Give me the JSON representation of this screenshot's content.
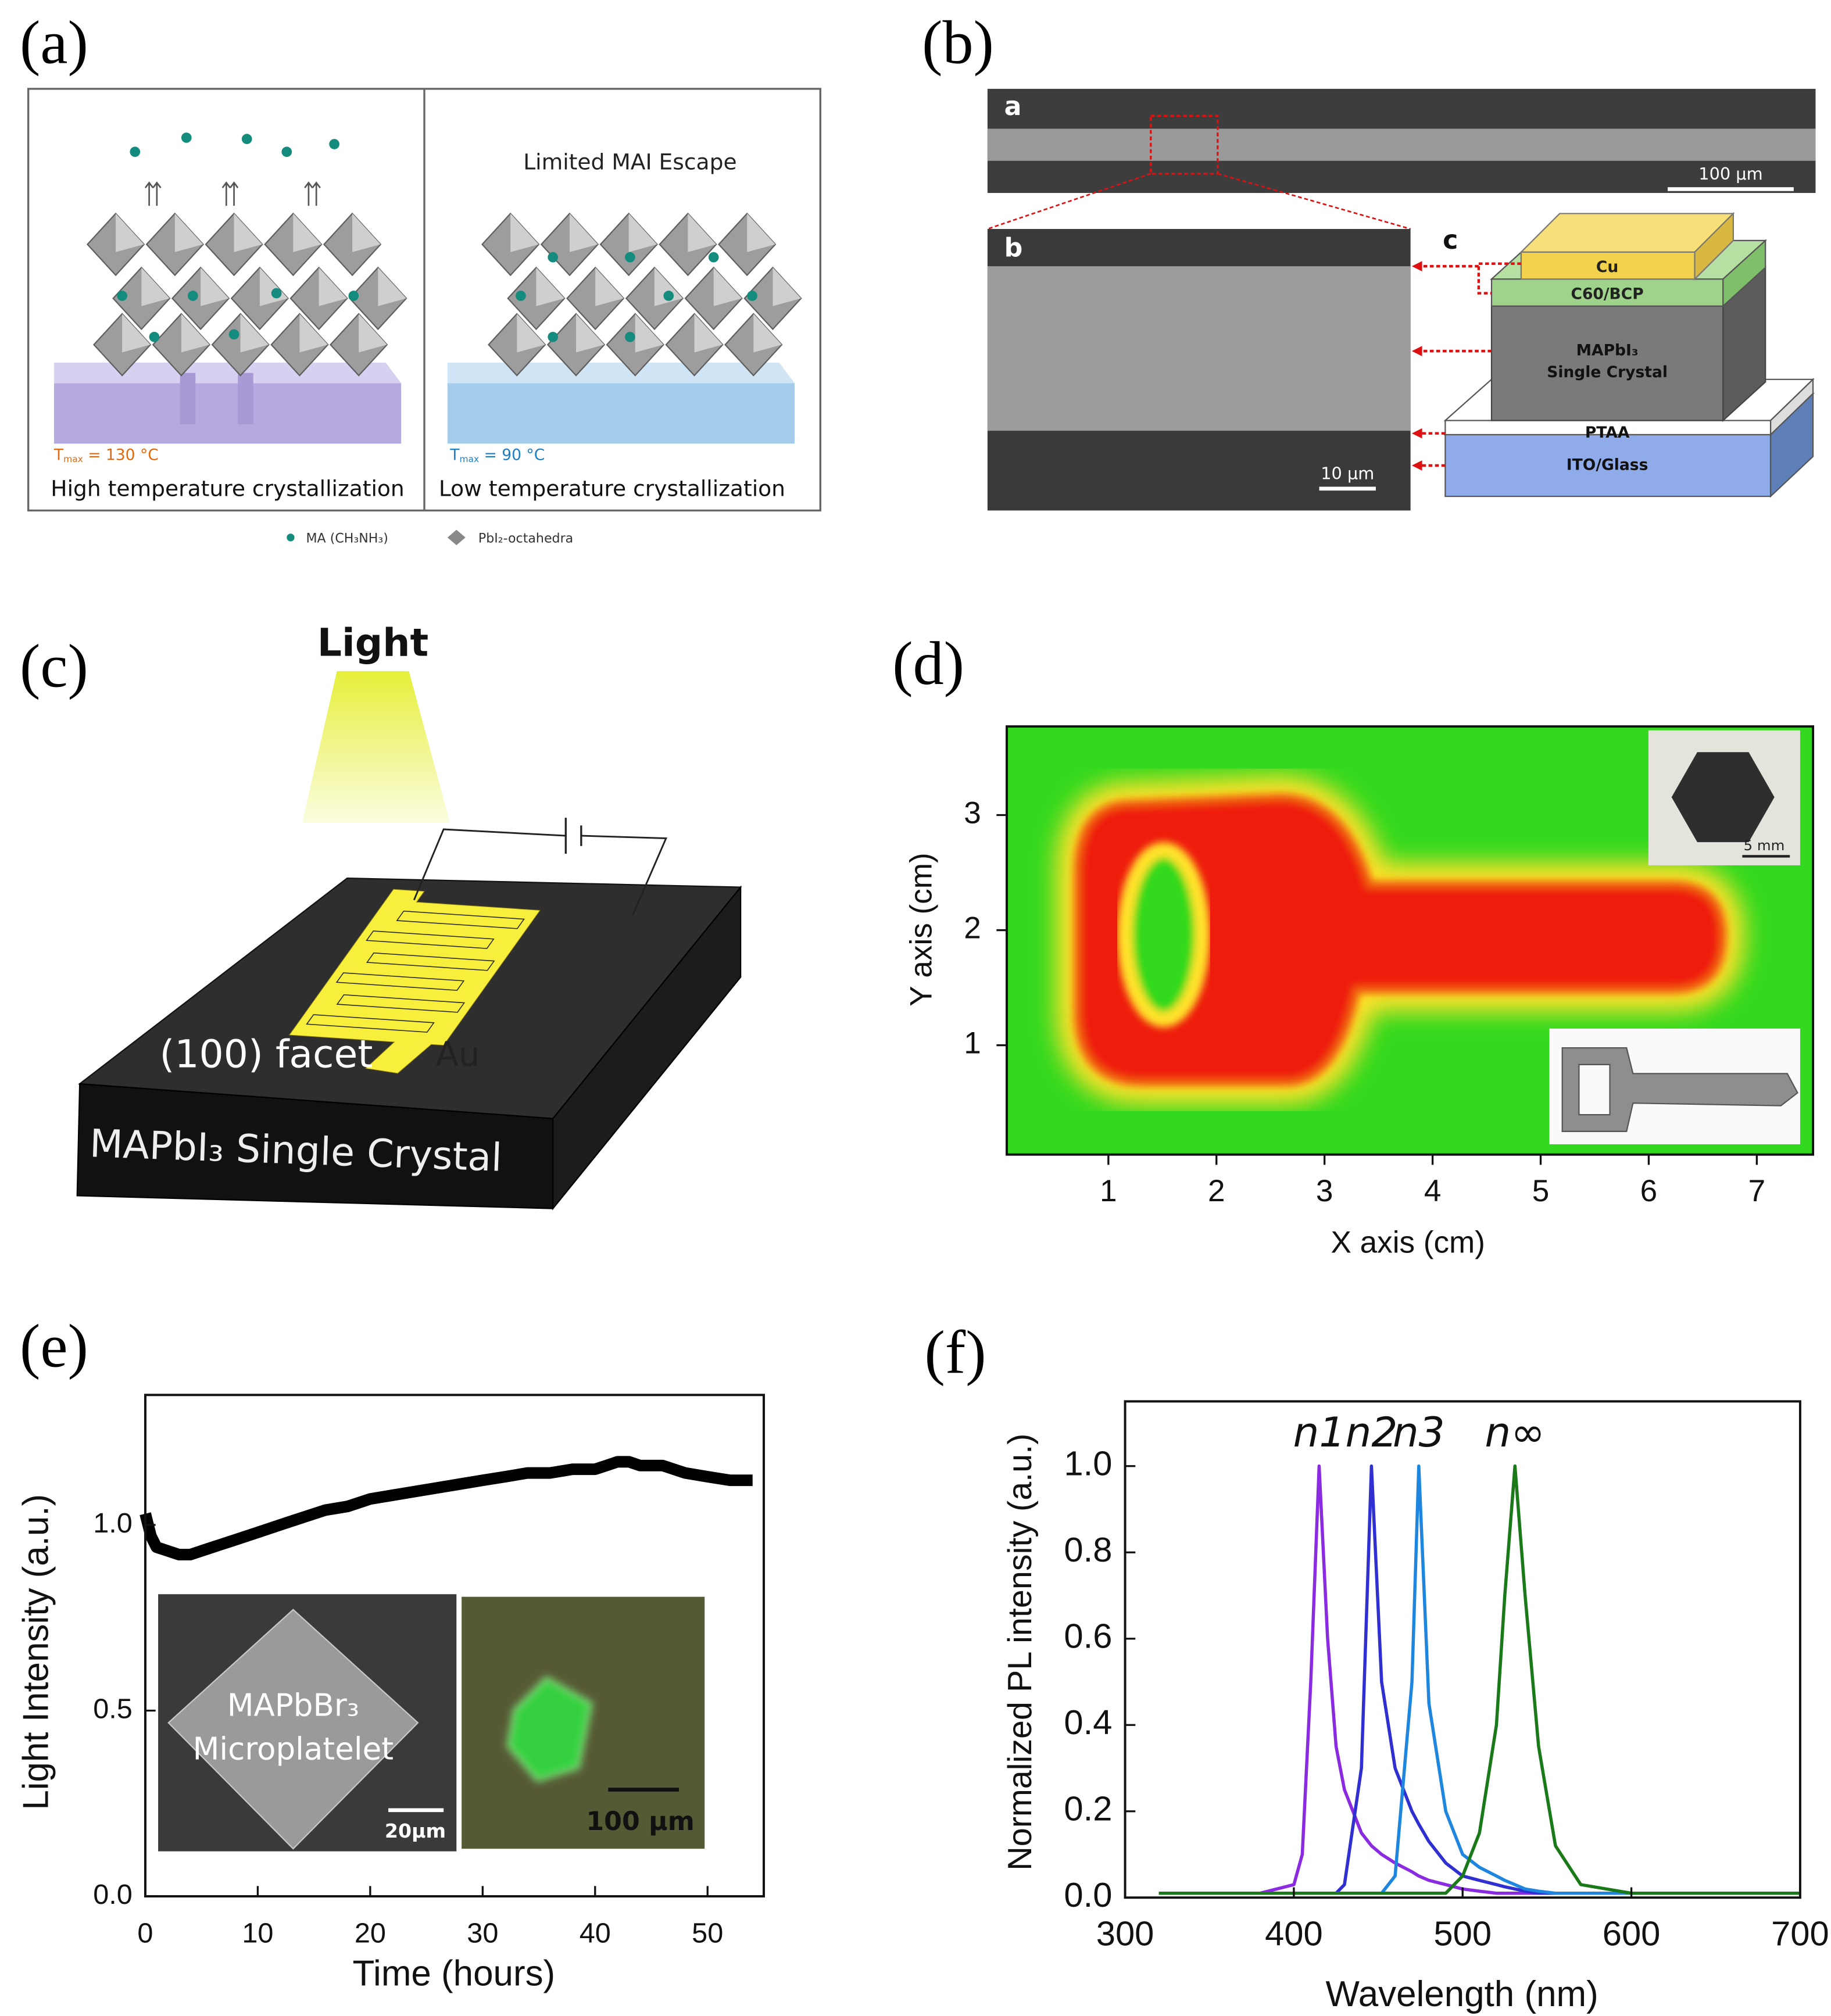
{
  "figure_labels": [
    "(a)",
    "(b)",
    "(c)",
    "(d)",
    "(e)",
    "(f)"
  ],
  "panel_a": {
    "heading_right": "Limited MAI Escape",
    "left": {
      "t": "T",
      "t_sub": "max",
      "t_rest": " = 130 °C",
      "caption": "High temperature crystallization"
    },
    "right": {
      "t": "T",
      "t_sub": "max",
      "t_rest": " = 90 °C",
      "caption": "Low temperature crystallization"
    },
    "legend": [
      "MA (CH₃NH₃)",
      "PbI₂-octahedra"
    ]
  },
  "panel_b": {
    "sub_labels": [
      "a",
      "b",
      "c"
    ],
    "scale_bars": [
      "100 μm",
      "10 μm"
    ],
    "layers": [
      "Cu",
      "C60/BCP",
      "PTAA",
      "ITO/Glass"
    ],
    "crystal_label": [
      "MAPbI₃",
      "Single Crystal"
    ]
  },
  "panel_c": {
    "light": "Light",
    "facet": "(100) facet",
    "electrode": "Au",
    "crystal": "MAPbI₃ Single Crystal"
  },
  "chart_data": [
    {
      "type": "map",
      "xlabel": "X axis (cm)",
      "ylabel": "Y axis (cm)",
      "xlim": [
        0.06,
        7.52
      ],
      "ylim": [
        0.05,
        3.77
      ],
      "xticks": [
        1,
        2,
        3,
        4,
        5,
        6,
        7
      ],
      "yticks": [
        1,
        2,
        3
      ],
      "colors": {
        "background": "#33d91f",
        "edge": "#ffe22a",
        "core": "#ee1c0c"
      },
      "inset_scale": "5 mm"
    },
    {
      "type": "line",
      "xlabel": "Time (hours)",
      "ylabel": "Light Intensity (a.u.)",
      "xlim": [
        0,
        55
      ],
      "ylim": [
        0,
        1.35
      ],
      "xticks": [
        0,
        10,
        20,
        30,
        40,
        50
      ],
      "yticks": [
        {
          "value": 0,
          "label": "0.0"
        },
        0.5,
        {
          "value": 1,
          "label": "1.0"
        }
      ],
      "x": [
        0,
        0.5,
        1,
        2,
        3,
        4,
        6,
        8,
        10,
        12,
        14,
        16,
        18,
        20,
        22,
        24,
        26,
        28,
        30,
        32,
        34,
        36,
        38,
        40,
        41,
        42,
        43,
        44,
        46,
        48,
        50,
        52,
        54
      ],
      "series": [
        {
          "color": "#000000",
          "values": [
            1.03,
            0.97,
            0.94,
            0.93,
            0.92,
            0.92,
            0.94,
            0.96,
            0.98,
            1.0,
            1.02,
            1.04,
            1.05,
            1.07,
            1.08,
            1.09,
            1.1,
            1.11,
            1.12,
            1.13,
            1.14,
            1.14,
            1.15,
            1.15,
            1.16,
            1.17,
            1.17,
            1.16,
            1.16,
            1.14,
            1.13,
            1.12,
            1.12
          ]
        }
      ],
      "inset_labels": [
        "MAPbBr₃",
        "Microplatelet",
        "20μm",
        "100 μm"
      ]
    },
    {
      "type": "line",
      "xlabel": "Wavelength (nm)",
      "ylabel": "Normalized PL intensity (a.u.)",
      "xlim": [
        300,
        700
      ],
      "ylim": [
        0,
        1.15
      ],
      "xticks": [
        300,
        400,
        500,
        600,
        700
      ],
      "yticks": [
        {
          "value": 0,
          "label": "0.0"
        },
        0.2,
        0.4,
        0.6,
        0.8,
        {
          "value": 1,
          "label": "1.0"
        }
      ],
      "x": [
        320,
        380,
        400,
        405,
        410,
        415,
        420,
        425,
        430,
        440,
        446,
        452,
        460,
        470,
        474,
        480,
        490,
        500,
        510,
        520,
        525,
        531,
        537,
        545,
        555,
        570,
        600,
        650,
        700
      ],
      "series": [
        {
          "name": "n1",
          "color": "#8a2be2",
          "values": [
            0.01,
            0.01,
            0.03,
            0.1,
            0.5,
            1.0,
            0.6,
            0.35,
            0.25,
            0.15,
            0.12,
            0.1,
            0.08,
            0.06,
            0.05,
            0.04,
            0.03,
            0.02,
            0.015,
            0.01,
            0.01,
            0.01,
            0.01,
            0.01,
            0.01,
            0.01,
            0.01,
            0.01,
            0.01
          ]
        },
        {
          "name": "n2",
          "color": "#2f2fd2",
          "values": [
            0.01,
            0.01,
            0.01,
            0.01,
            0.01,
            0.01,
            0.01,
            0.01,
            0.03,
            0.3,
            1.0,
            0.5,
            0.3,
            0.2,
            0.17,
            0.13,
            0.08,
            0.05,
            0.04,
            0.03,
            0.025,
            0.02,
            0.015,
            0.01,
            0.01,
            0.01,
            0.01,
            0.01,
            0.01
          ]
        },
        {
          "name": "n3",
          "color": "#1f86e0",
          "values": [
            0.01,
            0.01,
            0.01,
            0.01,
            0.01,
            0.01,
            0.01,
            0.01,
            0.01,
            0.01,
            0.01,
            0.01,
            0.05,
            0.5,
            1.0,
            0.45,
            0.2,
            0.1,
            0.07,
            0.05,
            0.04,
            0.03,
            0.02,
            0.015,
            0.01,
            0.01,
            0.01,
            0.01,
            0.01
          ]
        },
        {
          "name": "n∞",
          "color": "#1a7a1a",
          "values": [
            0.01,
            0.01,
            0.01,
            0.01,
            0.01,
            0.01,
            0.01,
            0.01,
            0.01,
            0.01,
            0.01,
            0.01,
            0.01,
            0.01,
            0.01,
            0.01,
            0.01,
            0.05,
            0.15,
            0.4,
            0.7,
            1.0,
            0.7,
            0.35,
            0.12,
            0.03,
            0.01,
            0.01,
            0.01
          ]
        }
      ]
    }
  ]
}
